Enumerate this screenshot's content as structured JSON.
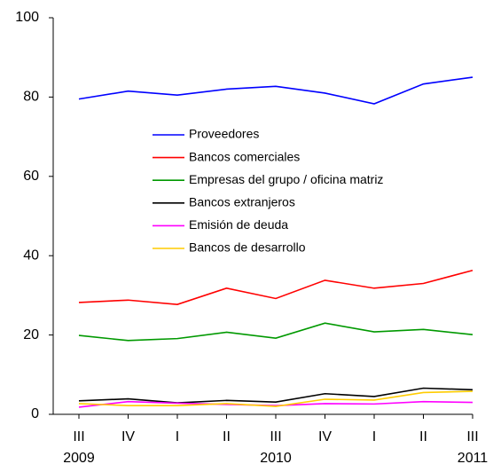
{
  "chart_data": {
    "type": "line",
    "categories": [
      "III",
      "IV",
      "I",
      "II",
      "III",
      "IV",
      "I",
      "II",
      "III"
    ],
    "years": [
      "2009",
      null,
      null,
      null,
      "2010",
      null,
      null,
      null,
      "2011"
    ],
    "ylim": [
      0,
      100
    ],
    "yticks": [
      0,
      20,
      40,
      60,
      80,
      100
    ],
    "series": [
      {
        "name": "Proveedores",
        "color": "#0000ff",
        "values": [
          79.5,
          81.5,
          80.5,
          82,
          82.7,
          81,
          78.3,
          83.3,
          85
        ]
      },
      {
        "name": "Bancos comerciales",
        "color": "#ff0000",
        "values": [
          28.2,
          28.8,
          27.7,
          31.8,
          29.2,
          33.8,
          31.8,
          33,
          36.3
        ]
      },
      {
        "name": "Empresas del grupo / oficina matriz",
        "color": "#009900",
        "values": [
          19.9,
          18.6,
          19.1,
          20.7,
          19.2,
          23,
          20.8,
          21.4,
          20.1
        ]
      },
      {
        "name": "Bancos extranjeros",
        "color": "#000000",
        "values": [
          3.4,
          3.9,
          2.9,
          3.5,
          3.1,
          5.2,
          4.5,
          6.6,
          6.2
        ]
      },
      {
        "name": "Emisión de deuda",
        "color": "#ff00ff",
        "values": [
          1.8,
          3.2,
          2.8,
          2.5,
          2.2,
          2.7,
          2.6,
          3.2,
          3
        ]
      },
      {
        "name": "Bancos de desarrollo",
        "color": "#ffcc00",
        "values": [
          2.7,
          2.2,
          2.2,
          2.7,
          2,
          3.8,
          3.6,
          5.5,
          5.8
        ]
      }
    ]
  }
}
